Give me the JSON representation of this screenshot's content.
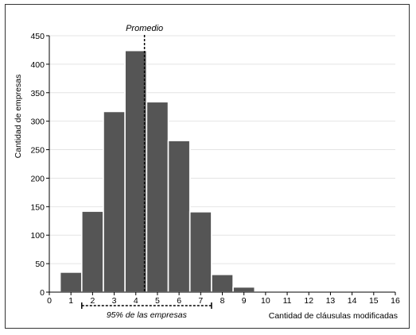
{
  "chart_data": {
    "type": "bar",
    "title": "",
    "xlabel": "Cantidad de cláusulas modificadas",
    "ylabel": "Cantidad de empresas",
    "xlim": [
      0,
      16
    ],
    "ylim": [
      0,
      450
    ],
    "xticks": [
      0,
      1,
      2,
      3,
      4,
      5,
      6,
      7,
      8,
      9,
      10,
      11,
      12,
      13,
      14,
      15,
      16
    ],
    "yticks": [
      0,
      50,
      100,
      150,
      200,
      250,
      300,
      350,
      400,
      450
    ],
    "grid": true,
    "bars": [
      {
        "x": 1,
        "value": 35
      },
      {
        "x": 2,
        "value": 142
      },
      {
        "x": 3,
        "value": 317
      },
      {
        "x": 4,
        "value": 424
      },
      {
        "x": 5,
        "value": 334
      },
      {
        "x": 6,
        "value": 266
      },
      {
        "x": 7,
        "value": 141
      },
      {
        "x": 8,
        "value": 31
      },
      {
        "x": 9,
        "value": 9
      },
      {
        "x": 10,
        "value": 1
      },
      {
        "x": 11,
        "value": 0
      },
      {
        "x": 12,
        "value": 0
      },
      {
        "x": 13,
        "value": 0
      },
      {
        "x": 14,
        "value": 0
      },
      {
        "x": 15,
        "value": 0
      }
    ],
    "mean": {
      "x": 4.4,
      "label": "Promedio"
    },
    "interval": {
      "from": 1.5,
      "to": 7.5,
      "label": "95% de las empresas"
    },
    "colors": {
      "bar": "#555555",
      "bar_edge": "#ffffff",
      "grid": "#e4e4e4",
      "axis": "#000000"
    }
  }
}
